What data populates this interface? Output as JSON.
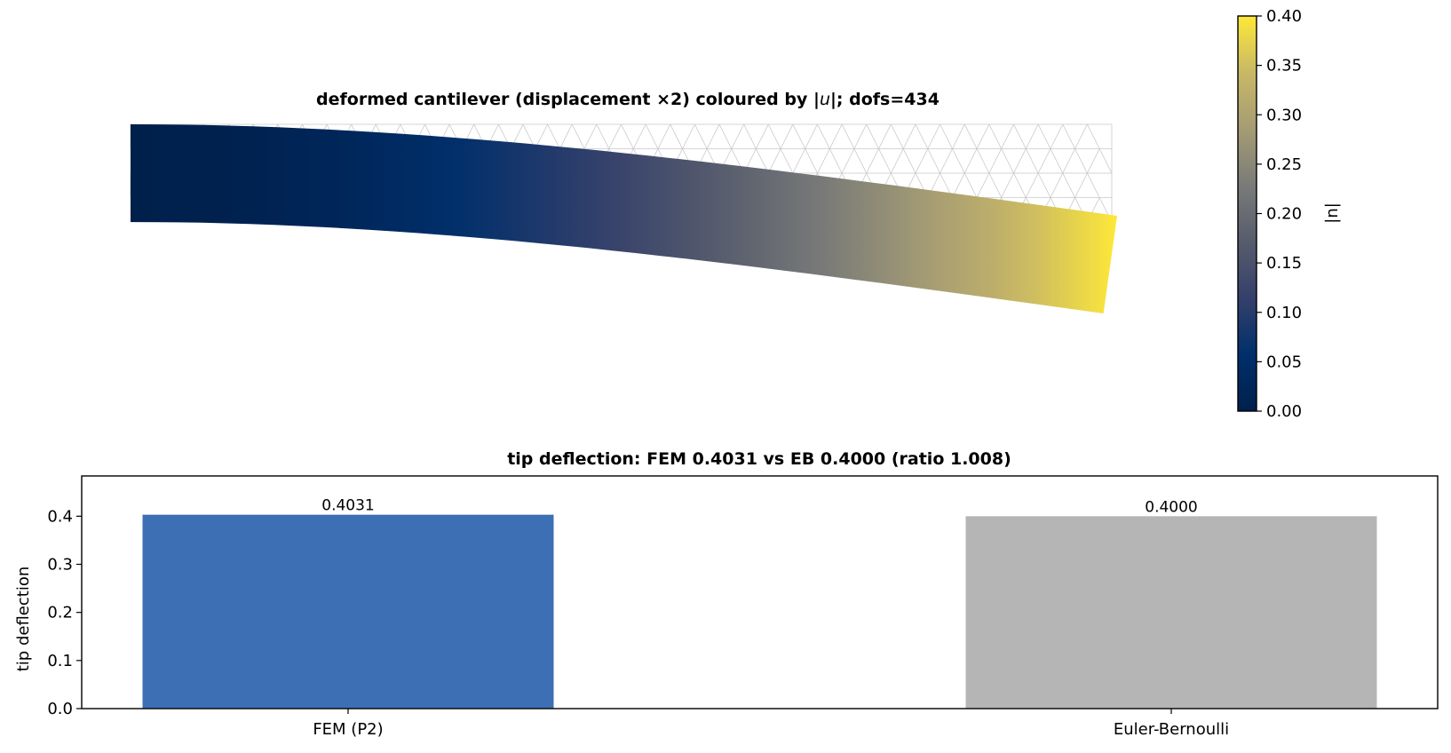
{
  "chart_data": [
    {
      "type": "heatmap",
      "title_parts": [
        "deformed cantilever (displacement ×2) coloured by |",
        "u",
        "|;  dofs=434"
      ],
      "colorbar": {
        "label": "|u|",
        "colormap": "cividis",
        "range": [
          0.0,
          0.4
        ],
        "ticks": [
          "0.00",
          "0.05",
          "0.10",
          "0.15",
          "0.20",
          "0.25",
          "0.30",
          "0.35",
          "0.40"
        ],
        "colors": [
          "#00204c",
          "#002f6b",
          "#34406b",
          "#575c6d",
          "#7a7b78",
          "#a59c74",
          "#c8b866",
          "#fee838"
        ]
      },
      "mesh": {
        "show": true,
        "color": "#c8c8c8",
        "shape": "undeformed"
      }
    },
    {
      "type": "bar",
      "title": "tip deflection: FEM 0.4031 vs EB 0.4000  (ratio 1.008)",
      "categories": [
        "FEM (P2)",
        "Euler-Bernoulli"
      ],
      "values": [
        0.4031,
        0.4
      ],
      "value_labels": [
        "0.4031",
        "0.4000"
      ],
      "colors": [
        "#3d6fb4",
        "#b5b5b5"
      ],
      "xlabel": "",
      "ylabel": "tip deflection",
      "ylim": [
        0,
        0.4837
      ],
      "yticks": [
        "0.0",
        "0.1",
        "0.2",
        "0.3",
        "0.4"
      ]
    }
  ]
}
